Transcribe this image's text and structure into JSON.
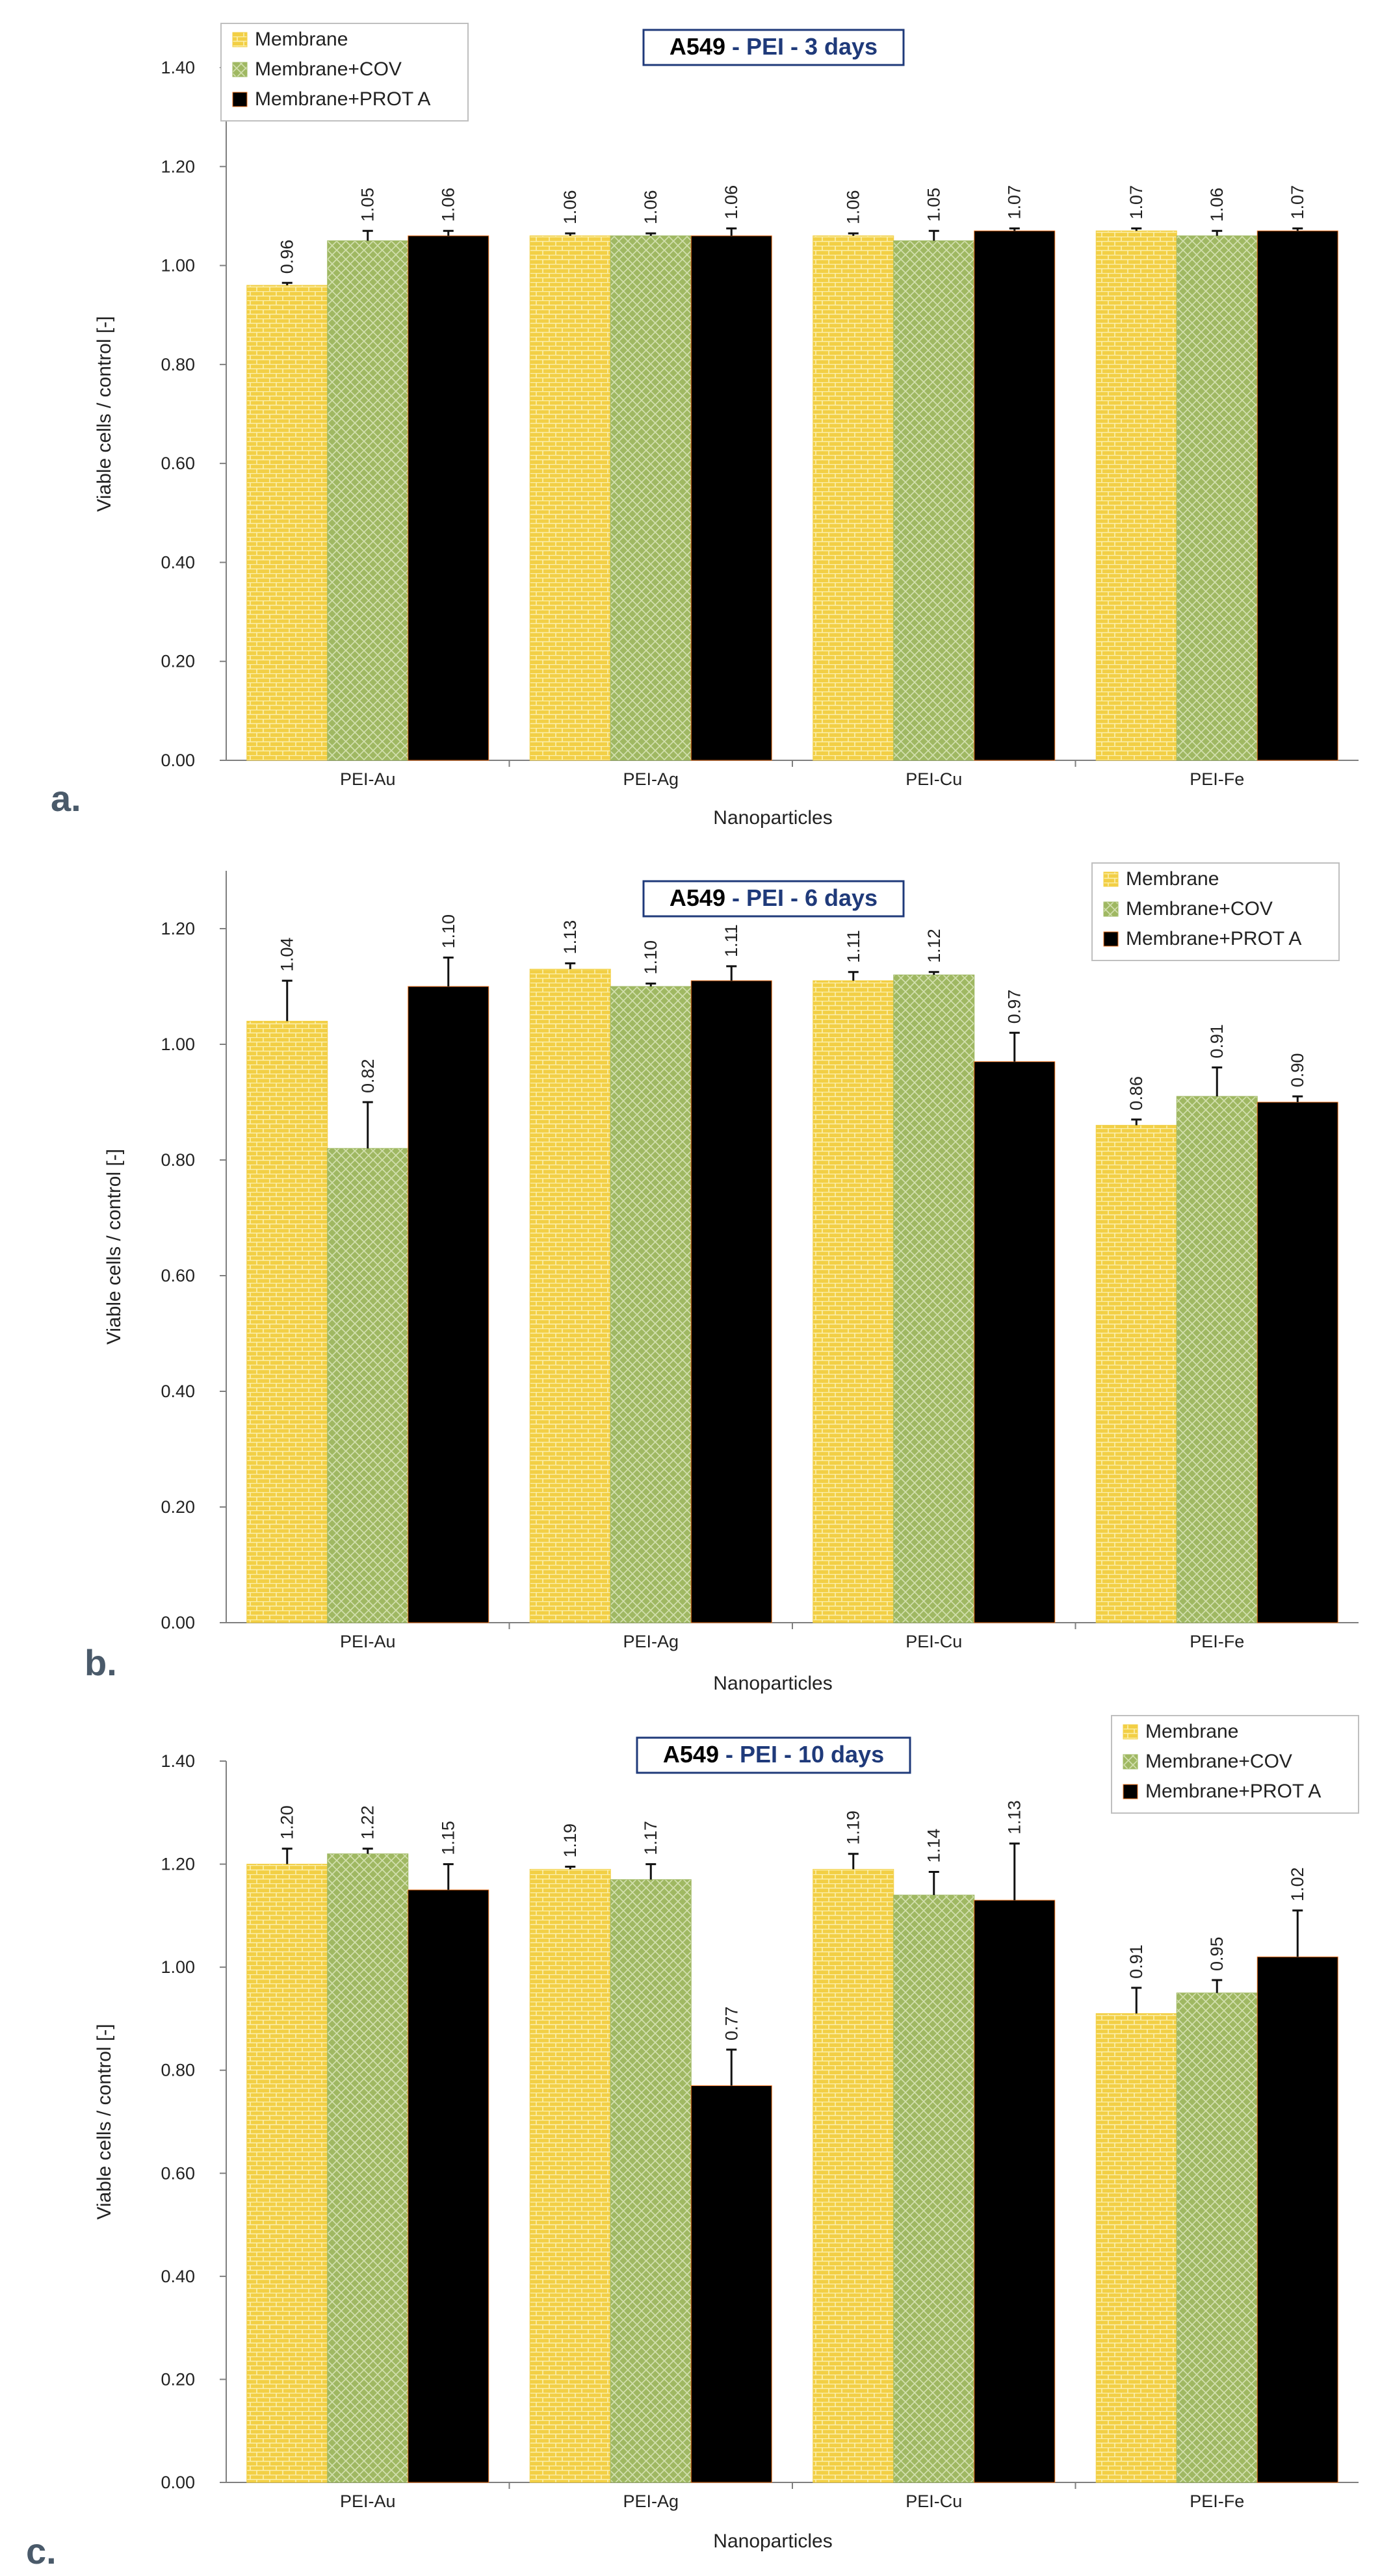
{
  "colors": {
    "Membrane": "#f2cf45",
    "Membrane+COV": "#9fb862",
    "Membrane+PROT A": "#f0751f",
    "title_border": "#1f3a7a"
  },
  "chart_data": [
    {
      "type": "bar",
      "panel_label": "a.",
      "title_main": "A549",
      "title_rest": "- PEI - 3 days",
      "xlabel": "Nanoparticles",
      "ylabel": "Viable cells / control [-]",
      "ylim": [
        0,
        1.4
      ],
      "yticks": [
        "0.00",
        "0.20",
        "0.40",
        "0.60",
        "0.80",
        "1.00",
        "1.20",
        "1.40"
      ],
      "legend_position": "top-left",
      "categories": [
        "PEI-Au",
        "PEI-Ag",
        "PEI-Cu",
        "PEI-Fe"
      ],
      "series": [
        {
          "name": "Membrane",
          "values": [
            0.96,
            1.06,
            1.06,
            1.07
          ],
          "errors": [
            0.005,
            0.005,
            0.005,
            0.005
          ],
          "labels": [
            "0.96",
            "1.06",
            "1.06",
            "1.07"
          ]
        },
        {
          "name": "Membrane+COV",
          "values": [
            1.05,
            1.06,
            1.05,
            1.06
          ],
          "errors": [
            0.02,
            0.005,
            0.02,
            0.01
          ],
          "labels": [
            "1.05",
            "1.06",
            "1.05",
            "1.06"
          ]
        },
        {
          "name": "Membrane+PROT A",
          "values": [
            1.06,
            1.06,
            1.07,
            1.07
          ],
          "errors": [
            0.01,
            0.015,
            0.005,
            0.005
          ],
          "labels": [
            "1.06",
            "1.06",
            "1.07",
            "1.07"
          ]
        }
      ]
    },
    {
      "type": "bar",
      "panel_label": "b.",
      "title_main": "A549",
      "title_rest": "- PEI - 6 days",
      "xlabel": "Nanoparticles",
      "ylabel": "Viable cells / control [-]",
      "ylim": [
        0,
        1.3
      ],
      "yticks": [
        "0.00",
        "0.20",
        "0.40",
        "0.60",
        "0.80",
        "1.00",
        "1.20"
      ],
      "legend_position": "top-right",
      "categories": [
        "PEI-Au",
        "PEI-Ag",
        "PEI-Cu",
        "PEI-Fe"
      ],
      "series": [
        {
          "name": "Membrane",
          "values": [
            1.04,
            1.13,
            1.11,
            0.86
          ],
          "errors": [
            0.07,
            0.01,
            0.015,
            0.01
          ],
          "labels": [
            "1.04",
            "1.13",
            "1.11",
            "0.86"
          ]
        },
        {
          "name": "Membrane+COV",
          "values": [
            0.82,
            1.1,
            1.12,
            0.91
          ],
          "errors": [
            0.08,
            0.005,
            0.005,
            0.05
          ],
          "labels": [
            "0.82",
            "1.10",
            "1.12",
            "0.91"
          ]
        },
        {
          "name": "Membrane+PROT A",
          "values": [
            1.1,
            1.11,
            0.97,
            0.9
          ],
          "errors": [
            0.05,
            0.025,
            0.05,
            0.01
          ],
          "labels": [
            "1.10",
            "1.11",
            "0.97",
            "0.90"
          ]
        }
      ]
    },
    {
      "type": "bar",
      "panel_label": "c.",
      "title_main": "A549",
      "title_rest": "- PEI - 10 days",
      "xlabel": "Nanoparticles",
      "ylabel": "Viable cells / control [-]",
      "ylim": [
        0,
        1.4
      ],
      "yticks": [
        "0.00",
        "0.20",
        "0.40",
        "0.60",
        "0.80",
        "1.00",
        "1.20",
        "1.40"
      ],
      "legend_position": "top-right",
      "categories": [
        "PEI-Au",
        "PEI-Ag",
        "PEI-Cu",
        "PEI-Fe"
      ],
      "series": [
        {
          "name": "Membrane",
          "values": [
            1.2,
            1.19,
            1.19,
            0.91
          ],
          "errors": [
            0.03,
            0.005,
            0.03,
            0.05
          ],
          "labels": [
            "1.20",
            "1.19",
            "1.19",
            "0.91"
          ]
        },
        {
          "name": "Membrane+COV",
          "values": [
            1.22,
            1.17,
            1.14,
            0.95
          ],
          "errors": [
            0.01,
            0.03,
            0.045,
            0.025
          ],
          "labels": [
            "1.22",
            "1.17",
            "1.14",
            "0.95"
          ]
        },
        {
          "name": "Membrane+PROT A",
          "values": [
            1.15,
            0.77,
            1.13,
            1.02
          ],
          "errors": [
            0.05,
            0.07,
            0.11,
            0.09
          ],
          "labels": [
            "1.15",
            "0.77",
            "1.13",
            "1.02"
          ]
        }
      ]
    }
  ]
}
